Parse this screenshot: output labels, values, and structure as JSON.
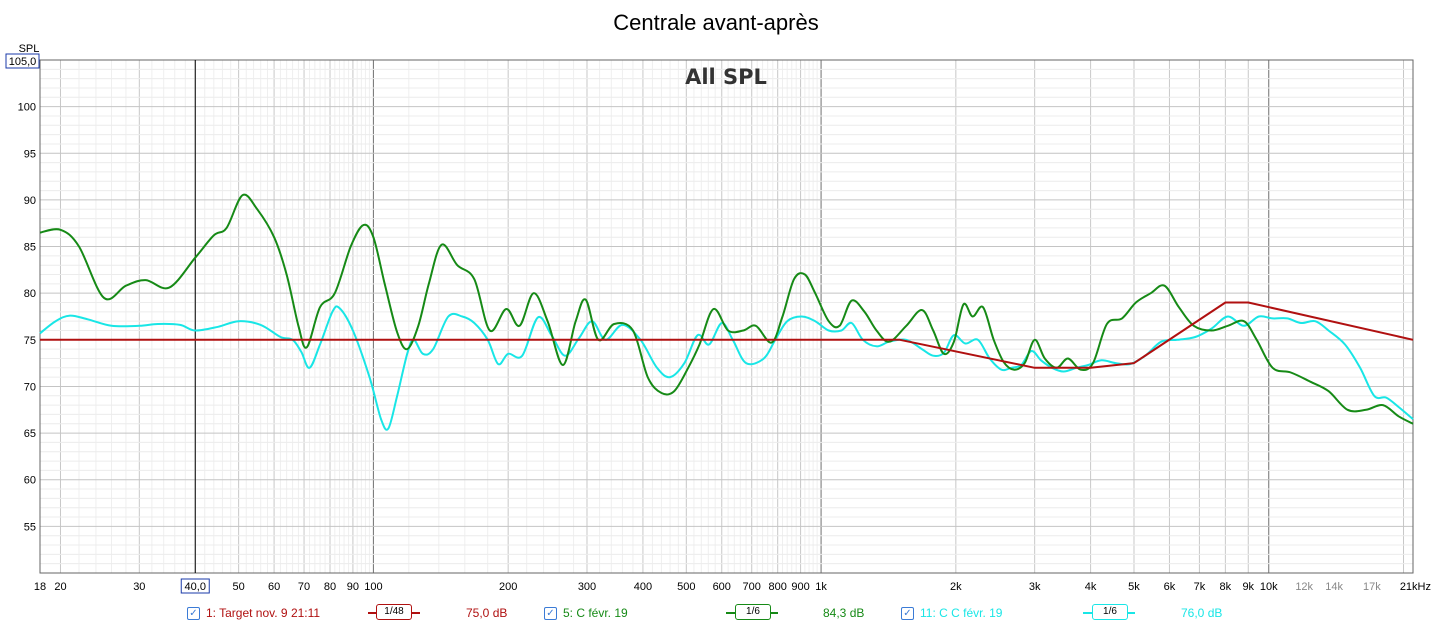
{
  "chart_data": {
    "type": "line",
    "title": "Centrale avant-après",
    "overlay_label": "All SPL",
    "ylabel": "SPL",
    "ylim": [
      50,
      105
    ],
    "y_top_label": "105,0",
    "y_ticks": [
      55,
      60,
      65,
      70,
      75,
      80,
      85,
      90,
      95,
      100
    ],
    "x_scale": "log",
    "xlim": [
      18,
      21000
    ],
    "x_ticks": [
      {
        "v": 18,
        "label": "18"
      },
      {
        "v": 20,
        "label": "20"
      },
      {
        "v": 30,
        "label": "30"
      },
      {
        "v": 40,
        "label": "40,0",
        "boxed": true
      },
      {
        "v": 50,
        "label": "50"
      },
      {
        "v": 60,
        "label": "60"
      },
      {
        "v": 70,
        "label": "70"
      },
      {
        "v": 80,
        "label": "80"
      },
      {
        "v": 90,
        "label": "90"
      },
      {
        "v": 100,
        "label": "100"
      },
      {
        "v": 200,
        "label": "200"
      },
      {
        "v": 300,
        "label": "300"
      },
      {
        "v": 400,
        "label": "400"
      },
      {
        "v": 500,
        "label": "500"
      },
      {
        "v": 600,
        "label": "600"
      },
      {
        "v": 700,
        "label": "700"
      },
      {
        "v": 800,
        "label": "800"
      },
      {
        "v": 900,
        "label": "900"
      },
      {
        "v": 1000,
        "label": "1k"
      },
      {
        "v": 2000,
        "label": "2k"
      },
      {
        "v": 3000,
        "label": "3k"
      },
      {
        "v": 4000,
        "label": "4k"
      },
      {
        "v": 5000,
        "label": "5k"
      },
      {
        "v": 6000,
        "label": "6k"
      },
      {
        "v": 7000,
        "label": "7k"
      },
      {
        "v": 8000,
        "label": "8k"
      },
      {
        "v": 9000,
        "label": "9k"
      },
      {
        "v": 10000,
        "label": "10k"
      },
      {
        "v": 12000,
        "label": "12k",
        "minor": true
      },
      {
        "v": 14000,
        "label": "14k",
        "minor": true
      },
      {
        "v": 17000,
        "label": "17k",
        "minor": true
      },
      {
        "v": 21000,
        "label": "21kHz"
      }
    ],
    "cursor_x": 40,
    "grid": true,
    "series": [
      {
        "name": "1: Target nov. 9 21:11",
        "color": "#b01010",
        "smoothing": "1/48",
        "level": "75,0 dB",
        "points": [
          [
            18,
            75
          ],
          [
            1500,
            75
          ],
          [
            3000,
            72
          ],
          [
            4000,
            72
          ],
          [
            5000,
            72.5
          ],
          [
            8000,
            79
          ],
          [
            9000,
            79
          ],
          [
            21000,
            75
          ]
        ]
      },
      {
        "name": "5: C févr. 19",
        "color": "#168a16",
        "smoothing": "1/6",
        "level": "84,3 dB",
        "points": [
          [
            18,
            86.5
          ],
          [
            20,
            86.8
          ],
          [
            22,
            85
          ],
          [
            25,
            79.5
          ],
          [
            28,
            80.8
          ],
          [
            31,
            81.4
          ],
          [
            35,
            80.6
          ],
          [
            40,
            83.8
          ],
          [
            44,
            86.2
          ],
          [
            47,
            87
          ],
          [
            51,
            90.5
          ],
          [
            55,
            89
          ],
          [
            60,
            86
          ],
          [
            64,
            82
          ],
          [
            68,
            76.5
          ],
          [
            71,
            74.2
          ],
          [
            76,
            78.5
          ],
          [
            82,
            80
          ],
          [
            89,
            85
          ],
          [
            95,
            87.3
          ],
          [
            100,
            86
          ],
          [
            106,
            81
          ],
          [
            113,
            75.8
          ],
          [
            119,
            74
          ],
          [
            126,
            76.5
          ],
          [
            133,
            81
          ],
          [
            142,
            85.2
          ],
          [
            154,
            83
          ],
          [
            168,
            81.5
          ],
          [
            182,
            76
          ],
          [
            198,
            78.3
          ],
          [
            212,
            76.5
          ],
          [
            228,
            80
          ],
          [
            245,
            77
          ],
          [
            265,
            72.3
          ],
          [
            283,
            77
          ],
          [
            298,
            79.3
          ],
          [
            318,
            75
          ],
          [
            345,
            76.7
          ],
          [
            380,
            76
          ],
          [
            410,
            71
          ],
          [
            440,
            69.3
          ],
          [
            470,
            69.5
          ],
          [
            505,
            72
          ],
          [
            535,
            74.5
          ],
          [
            575,
            78.3
          ],
          [
            620,
            76
          ],
          [
            670,
            76
          ],
          [
            715,
            76.5
          ],
          [
            775,
            74.7
          ],
          [
            820,
            77.5
          ],
          [
            870,
            81.5
          ],
          [
            920,
            82
          ],
          [
            970,
            80
          ],
          [
            1040,
            77
          ],
          [
            1100,
            76.5
          ],
          [
            1170,
            79.2
          ],
          [
            1250,
            78
          ],
          [
            1330,
            76
          ],
          [
            1420,
            74.8
          ],
          [
            1550,
            76.5
          ],
          [
            1680,
            78.2
          ],
          [
            1780,
            76
          ],
          [
            1880,
            73.5
          ],
          [
            1980,
            74.8
          ],
          [
            2080,
            78.8
          ],
          [
            2180,
            77.5
          ],
          [
            2300,
            78.5
          ],
          [
            2430,
            75
          ],
          [
            2560,
            72.6
          ],
          [
            2700,
            71.8
          ],
          [
            2850,
            72.5
          ],
          [
            3000,
            75
          ],
          [
            3160,
            73
          ],
          [
            3360,
            72
          ],
          [
            3560,
            73
          ],
          [
            3800,
            71.8
          ],
          [
            4050,
            72.5
          ],
          [
            4350,
            76.7
          ],
          [
            4700,
            77.3
          ],
          [
            5050,
            79
          ],
          [
            5450,
            80
          ],
          [
            5850,
            80.8
          ],
          [
            6300,
            78.5
          ],
          [
            6800,
            76.5
          ],
          [
            7450,
            76
          ],
          [
            8100,
            76.5
          ],
          [
            8800,
            77
          ],
          [
            9400,
            75
          ],
          [
            10200,
            72
          ],
          [
            11200,
            71.5
          ],
          [
            12400,
            70.5
          ],
          [
            13600,
            69.5
          ],
          [
            15000,
            67.5
          ],
          [
            16500,
            67.5
          ],
          [
            18000,
            68
          ],
          [
            19500,
            66.8
          ],
          [
            21000,
            66
          ]
        ]
      },
      {
        "name": "11: C C févr. 19",
        "color": "#19e6e6",
        "smoothing": "1/6",
        "level": "76,0 dB",
        "points": [
          [
            18,
            75.7
          ],
          [
            19.5,
            77
          ],
          [
            21,
            77.6
          ],
          [
            23,
            77.2
          ],
          [
            26,
            76.5
          ],
          [
            30,
            76.5
          ],
          [
            33,
            76.7
          ],
          [
            37,
            76.6
          ],
          [
            40,
            76
          ],
          [
            45,
            76.4
          ],
          [
            50,
            77
          ],
          [
            56,
            76.6
          ],
          [
            62,
            75.3
          ],
          [
            66,
            75
          ],
          [
            69,
            73.7
          ],
          [
            72,
            72
          ],
          [
            76,
            74.5
          ],
          [
            81,
            78
          ],
          [
            84,
            78.4
          ],
          [
            90,
            76
          ],
          [
            98,
            71
          ],
          [
            104,
            66.5
          ],
          [
            108,
            65.5
          ],
          [
            113,
            69
          ],
          [
            119,
            73.5
          ],
          [
            123,
            75
          ],
          [
            129,
            73.5
          ],
          [
            136,
            74
          ],
          [
            147,
            77.5
          ],
          [
            158,
            77.5
          ],
          [
            168,
            76.8
          ],
          [
            180,
            75
          ],
          [
            190,
            72.4
          ],
          [
            200,
            73.5
          ],
          [
            215,
            73.3
          ],
          [
            233,
            77.4
          ],
          [
            250,
            75.5
          ],
          [
            268,
            73.3
          ],
          [
            288,
            75.2
          ],
          [
            308,
            77
          ],
          [
            330,
            75
          ],
          [
            360,
            76.6
          ],
          [
            395,
            75
          ],
          [
            430,
            72
          ],
          [
            460,
            71
          ],
          [
            495,
            72.5
          ],
          [
            530,
            75.5
          ],
          [
            562,
            74.5
          ],
          [
            600,
            76.8
          ],
          [
            635,
            75
          ],
          [
            680,
            72.5
          ],
          [
            745,
            73
          ],
          [
            790,
            75
          ],
          [
            840,
            77
          ],
          [
            905,
            77.5
          ],
          [
            970,
            77
          ],
          [
            1040,
            76
          ],
          [
            1110,
            76
          ],
          [
            1170,
            76.8
          ],
          [
            1240,
            75
          ],
          [
            1330,
            74.3
          ],
          [
            1420,
            74.8
          ],
          [
            1550,
            75
          ],
          [
            1680,
            74
          ],
          [
            1780,
            73.3
          ],
          [
            1880,
            73.6
          ],
          [
            1980,
            75.5
          ],
          [
            2100,
            74.6
          ],
          [
            2240,
            75
          ],
          [
            2380,
            73
          ],
          [
            2530,
            71.8
          ],
          [
            2660,
            72
          ],
          [
            2800,
            72.3
          ],
          [
            2950,
            73.8
          ],
          [
            3100,
            72.8
          ],
          [
            3280,
            72
          ],
          [
            3480,
            71.6
          ],
          [
            3720,
            72
          ],
          [
            3950,
            72.3
          ],
          [
            4230,
            72.8
          ],
          [
            4550,
            72.5
          ],
          [
            4900,
            72.4
          ],
          [
            5300,
            73.3
          ],
          [
            5750,
            74.8
          ],
          [
            6250,
            75
          ],
          [
            6850,
            75.3
          ],
          [
            7450,
            76.2
          ],
          [
            8100,
            77.5
          ],
          [
            8800,
            76.5
          ],
          [
            9500,
            77.5
          ],
          [
            10200,
            77.3
          ],
          [
            11000,
            77.3
          ],
          [
            11800,
            76.8
          ],
          [
            12700,
            77
          ],
          [
            13600,
            76
          ],
          [
            14800,
            74.5
          ],
          [
            16000,
            72
          ],
          [
            17200,
            69
          ],
          [
            18300,
            68.8
          ],
          [
            19500,
            67.8
          ],
          [
            21000,
            66.5
          ]
        ]
      }
    ]
  }
}
